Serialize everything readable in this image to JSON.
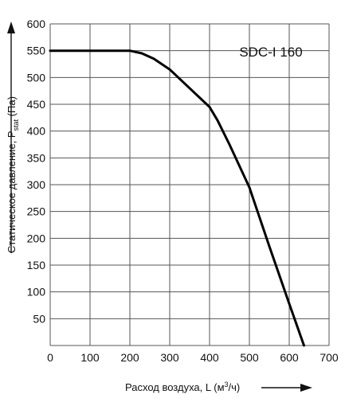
{
  "chart_data": {
    "type": "line",
    "model_label": "SDC-I 160",
    "xlabel": {
      "main": "Расход воздуха, L (м",
      "sup": "3",
      "tail": "/ч)"
    },
    "ylabel": {
      "main": "Статическое давление, P",
      "sub": "stat",
      "tail": " (Па)"
    },
    "xlim": [
      0,
      700
    ],
    "ylim": [
      0,
      600
    ],
    "x_ticks": [
      0,
      100,
      200,
      300,
      400,
      500,
      600,
      700
    ],
    "y_ticks": [
      0,
      50,
      100,
      150,
      200,
      250,
      300,
      350,
      400,
      450,
      500,
      550,
      600
    ],
    "grid": true,
    "series": [
      {
        "points": [
          [
            0,
            550
          ],
          [
            100,
            550
          ],
          [
            200,
            550
          ],
          [
            230,
            545
          ],
          [
            260,
            535
          ],
          [
            300,
            515
          ],
          [
            350,
            480
          ],
          [
            400,
            445
          ],
          [
            420,
            420
          ],
          [
            450,
            375
          ],
          [
            500,
            295
          ],
          [
            550,
            185
          ],
          [
            600,
            78
          ],
          [
            637,
            0
          ]
        ]
      }
    ]
  }
}
